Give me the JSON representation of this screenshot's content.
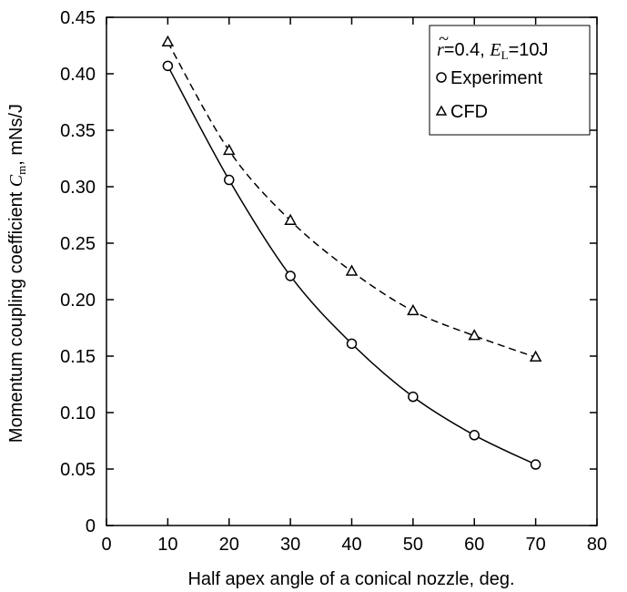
{
  "chart_data": {
    "type": "line",
    "title": "",
    "xlabel": "Half apex angle of a conical nozzle, deg.",
    "ylabel": {
      "prefix": "Momentum coupling coefficient ",
      "symbol": "C",
      "symbol_sub": "m",
      "suffix": ", mNs/J"
    },
    "xlim": [
      0,
      80
    ],
    "ylim": [
      0,
      0.45
    ],
    "xticks": [
      0,
      10,
      20,
      30,
      40,
      50,
      60,
      70,
      80
    ],
    "xtick_labels": [
      "0",
      "10",
      "20",
      "30",
      "40",
      "50",
      "60",
      "70",
      "80"
    ],
    "yticks": [
      0,
      0.05,
      0.1,
      0.15,
      0.2,
      0.25,
      0.3,
      0.35,
      0.4,
      0.45
    ],
    "ytick_labels": [
      "0",
      "0.05",
      "0.10",
      "0.15",
      "0.20",
      "0.25",
      "0.30",
      "0.35",
      "0.40",
      "0.45"
    ],
    "grid": false,
    "legend_position": "top-right",
    "legend_header": {
      "r_symbol": "r",
      "r_mark": "~",
      "r_value": "=0.4,",
      "e_symbol": "E",
      "e_sub": "L",
      "e_value": "=10J"
    },
    "series": [
      {
        "name": "Experiment",
        "marker": "circle",
        "line": "solid",
        "x": [
          10,
          20,
          30,
          40,
          50,
          60,
          70
        ],
        "y": [
          0.407,
          0.306,
          0.221,
          0.161,
          0.114,
          0.08,
          0.054
        ]
      },
      {
        "name": "CFD",
        "marker": "triangle",
        "line": "dashed",
        "x": [
          10,
          20,
          30,
          40,
          50,
          60,
          70
        ],
        "y": [
          0.428,
          0.332,
          0.27,
          0.225,
          0.19,
          0.168,
          0.149
        ]
      }
    ],
    "colors": {
      "line": "#000000",
      "marker_fill": "#ffffff"
    }
  }
}
